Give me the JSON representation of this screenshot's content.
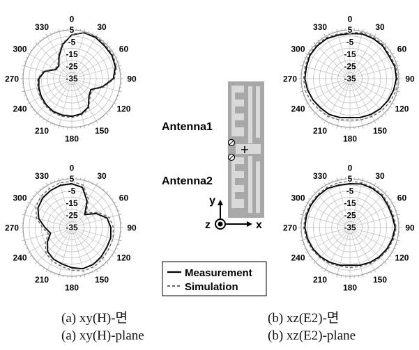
{
  "chart_data": [
    {
      "id": "xy-top",
      "type": "polar-line",
      "panel": "xy(H)-plane",
      "radial_ticks": [
        "5",
        "-5",
        "-15",
        "-25",
        "-35"
      ],
      "r_range": [
        -35,
        5
      ],
      "angle_labels": [
        "0",
        "30",
        "60",
        "90",
        "120",
        "150",
        "180",
        "210",
        "240",
        "270",
        "300",
        "330"
      ],
      "angles": [
        0,
        15,
        30,
        45,
        60,
        75,
        90,
        105,
        120,
        135,
        150,
        165,
        180,
        195,
        210,
        225,
        240,
        255,
        270,
        285,
        300,
        315,
        330,
        345
      ],
      "series": [
        {
          "name": "Measurement",
          "values": [
            1,
            4,
            4,
            3,
            3,
            2,
            -1,
            -9,
            -17,
            -15,
            -8,
            -5,
            -4,
            -4,
            -4,
            -5,
            -6,
            -7,
            -8,
            -12,
            -20,
            -20,
            -14,
            -6
          ]
        },
        {
          "name": "Simulation",
          "values": [
            1,
            4,
            5,
            4,
            4,
            3,
            0,
            -8,
            -16,
            -14,
            -7,
            -4,
            -3,
            -3,
            -3,
            -4,
            -5,
            -6,
            -7,
            -11,
            -19,
            -19,
            -13,
            -5
          ]
        }
      ]
    },
    {
      "id": "xz-top",
      "type": "polar-line",
      "panel": "xz(E2)-plane",
      "radial_ticks": [
        "5",
        "-5",
        "-15",
        "-25",
        "-35"
      ],
      "r_range": [
        -35,
        5
      ],
      "angle_labels": [
        "0",
        "30",
        "60",
        "90",
        "120",
        "150",
        "180",
        "210",
        "240",
        "270",
        "300",
        "330"
      ],
      "angles": [
        0,
        15,
        30,
        45,
        60,
        75,
        90,
        105,
        120,
        135,
        150,
        165,
        180,
        195,
        210,
        225,
        240,
        255,
        270,
        285,
        300,
        315,
        330,
        345
      ],
      "series": [
        {
          "name": "Measurement",
          "values": [
            2,
            3,
            3,
            3,
            2,
            3,
            3,
            2,
            1,
            0,
            -1,
            -2,
            -3,
            -2,
            -1,
            -1,
            0,
            1,
            2,
            2,
            3,
            3,
            3,
            2
          ]
        },
        {
          "name": "Simulation",
          "values": [
            3,
            4,
            4,
            4,
            3,
            4,
            4,
            4,
            3,
            2,
            1,
            0,
            -1,
            0,
            1,
            1,
            2,
            3,
            3,
            3,
            4,
            4,
            4,
            3
          ]
        }
      ]
    },
    {
      "id": "xy-bottom",
      "type": "polar-line",
      "panel": "xy(H)-plane",
      "radial_ticks": [
        "5",
        "-5",
        "-15",
        "-25",
        "-35"
      ],
      "r_range": [
        -35,
        5
      ],
      "angle_labels": [
        "0",
        "30",
        "60",
        "90",
        "120",
        "150",
        "180",
        "210",
        "240",
        "270",
        "300",
        "330"
      ],
      "angles": [
        0,
        15,
        30,
        45,
        60,
        75,
        90,
        105,
        120,
        135,
        150,
        165,
        180,
        195,
        210,
        225,
        240,
        255,
        270,
        285,
        300,
        315,
        330,
        345
      ],
      "series": [
        {
          "name": "Measurement",
          "values": [
            1,
            -1,
            -10,
            -20,
            -12,
            -5,
            -3,
            -2,
            -2,
            -1,
            0,
            0,
            -2,
            -4,
            -5,
            -7,
            -12,
            -17,
            -13,
            -7,
            -3,
            -1,
            0,
            1
          ]
        },
        {
          "name": "Simulation",
          "values": [
            3,
            1,
            -8,
            -18,
            -10,
            -3,
            -1,
            0,
            0,
            1,
            2,
            2,
            0,
            -2,
            -3,
            -5,
            -10,
            -15,
            -11,
            -5,
            -1,
            1,
            2,
            3
          ]
        }
      ]
    },
    {
      "id": "xz-bottom",
      "type": "polar-line",
      "panel": "xz(E2)-plane",
      "radial_ticks": [
        "5",
        "-5",
        "-15",
        "-25",
        "-35"
      ],
      "r_range": [
        -35,
        5
      ],
      "angle_labels": [
        "0",
        "30",
        "60",
        "90",
        "120",
        "150",
        "180",
        "210",
        "240",
        "270",
        "300",
        "330"
      ],
      "angles": [
        0,
        15,
        30,
        45,
        60,
        75,
        90,
        105,
        120,
        135,
        150,
        165,
        180,
        195,
        210,
        225,
        240,
        255,
        270,
        285,
        300,
        315,
        330,
        345
      ],
      "series": [
        {
          "name": "Measurement",
          "values": [
            1,
            2,
            2,
            2,
            1,
            1,
            2,
            1,
            0,
            -1,
            -2,
            -3,
            -4,
            -3,
            -2,
            -1,
            0,
            1,
            2,
            2,
            2,
            2,
            2,
            1
          ]
        },
        {
          "name": "Simulation",
          "values": [
            3,
            3,
            3,
            3,
            2,
            2,
            3,
            2,
            1,
            0,
            -1,
            -2,
            -2,
            -2,
            -1,
            0,
            1,
            2,
            3,
            3,
            3,
            3,
            3,
            3
          ]
        }
      ]
    }
  ],
  "diagram": {
    "antenna1_label": "Antenna1",
    "antenna2_label": "Antenna2",
    "axis_y_label": "y",
    "axis_z_label": "z",
    "axis_x_label": "x"
  },
  "legend": {
    "measurement_label": "Measurement",
    "simulation_label": "Simulation"
  },
  "captions": {
    "a_korean": "(a) xy(H)-면",
    "b_korean": "(b) xz(E2)-면",
    "a_english": "(a) xy(H)-plane",
    "b_english": "(b) xz(E2)-plane"
  },
  "colors": {
    "measurement": "#000000",
    "simulation": "#666666",
    "grid": "#bdbdbd",
    "substrate": "#a8a8a8",
    "metal": "#d9d9d9"
  }
}
